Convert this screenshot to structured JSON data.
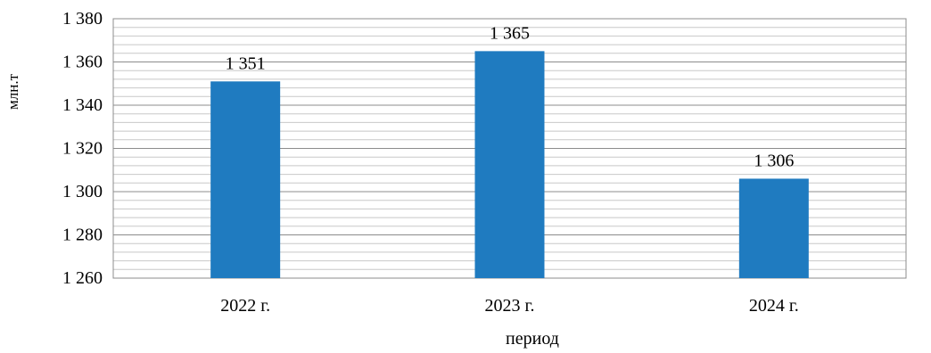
{
  "chart_data": {
    "type": "bar",
    "categories": [
      "2022 г.",
      "2023 г.",
      "2024 г."
    ],
    "values": [
      1351,
      1365,
      1306
    ],
    "value_labels": [
      "1 351",
      "1 365",
      "1 306"
    ],
    "xlabel": "период",
    "ylabel": "млн.т",
    "ylim": [
      1260,
      1380
    ],
    "y_ticks": [
      1260,
      1280,
      1300,
      1320,
      1340,
      1360,
      1380
    ],
    "y_tick_labels": [
      "1 260",
      "1 280",
      "1 300",
      "1 320",
      "1 340",
      "1 360",
      "1 380"
    ],
    "minor_grid_step": 4,
    "grid": true,
    "legend": "none",
    "bar_color": "#1F7BC0"
  }
}
